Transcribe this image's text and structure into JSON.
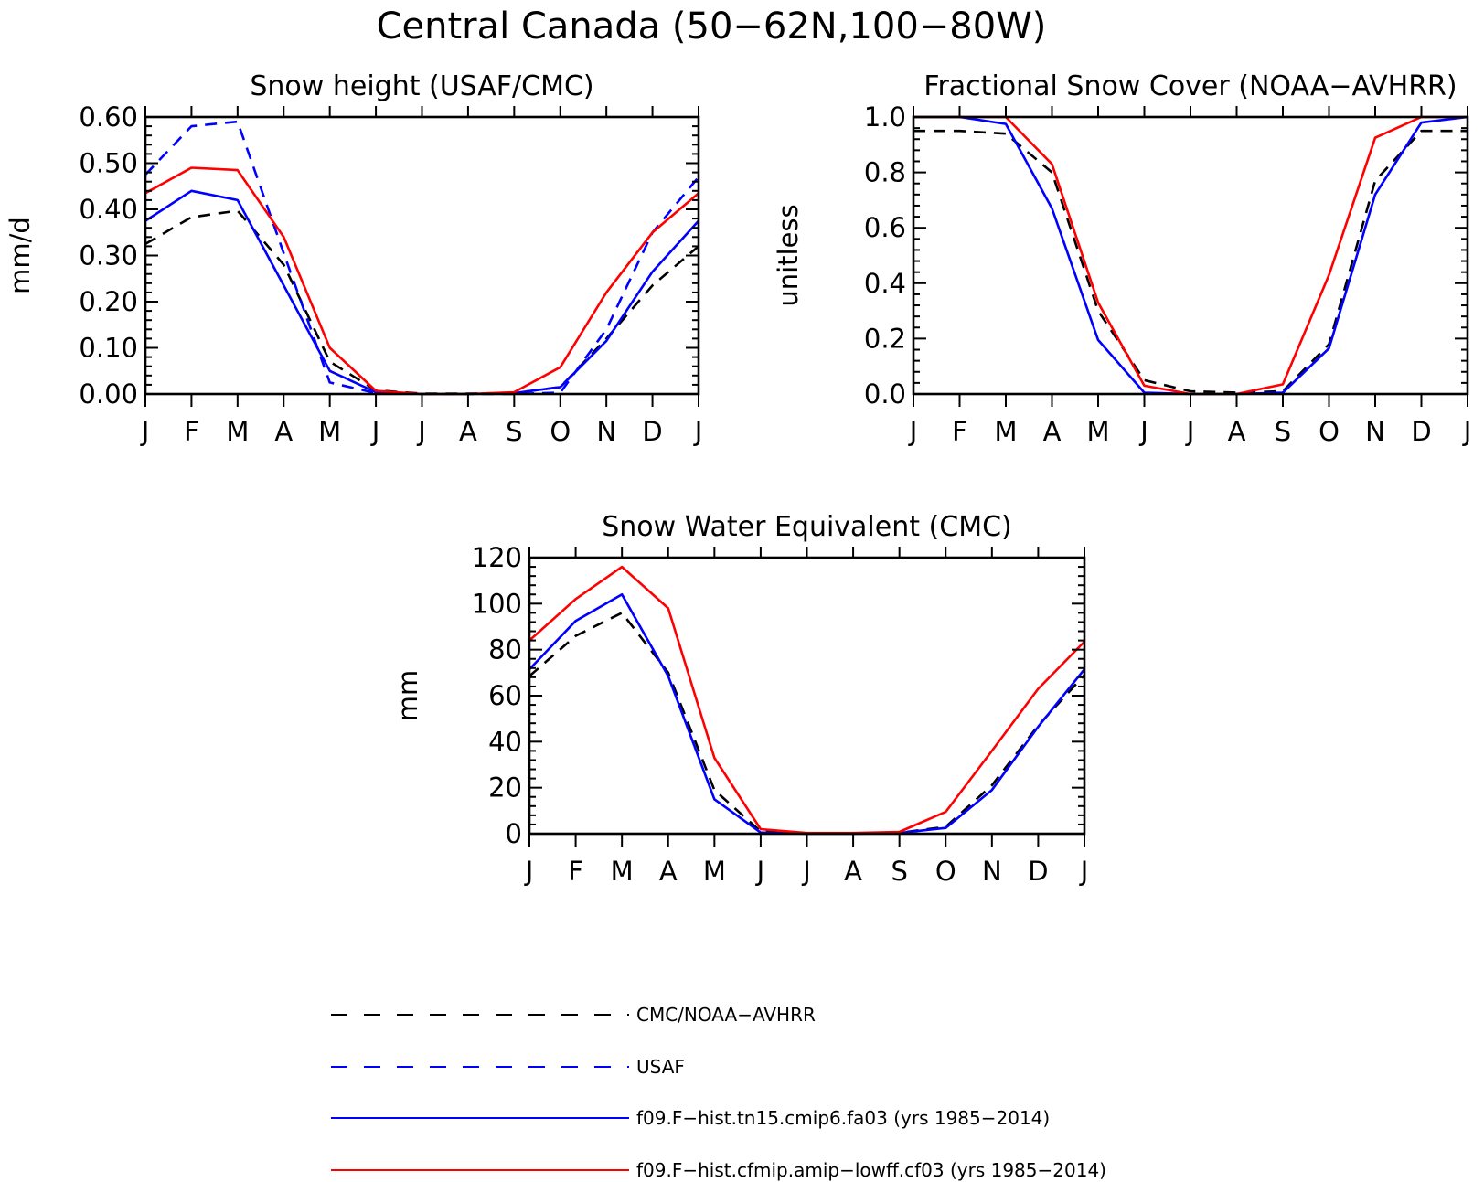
{
  "figure": {
    "title": "Central Canada (50−62N,100−80W)"
  },
  "styles": {
    "CMC/NOAA-AVHRR": {
      "color": "#000000",
      "dash": true
    },
    "USAF": {
      "color": "#0000ff",
      "dash": true
    },
    "f09.F−hist.tn15.cmip6.fa03 (yrs 1985−2014)": {
      "color": "#0000ff",
      "dash": false
    },
    "f09.F−hist.cfmip.amip−lowff.cf03 (yrs 1985−2014)": {
      "color": "#ff0000",
      "dash": false
    }
  },
  "legend": {
    "placement": "bottom-center",
    "entries": [
      "CMC/NOAA−AVHRR",
      "USAF",
      "f09.F−hist.tn15.cmip6.fa03 (yrs 1985−2014)",
      "f09.F−hist.cfmip.amip−lowff.cf03 (yrs 1985−2014)"
    ]
  },
  "chart_data": [
    {
      "type": "line",
      "title": "Snow height (USAF/CMC)",
      "xlabel": "",
      "ylabel": "mm/d",
      "categories": [
        "J",
        "F",
        "M",
        "A",
        "M",
        "J",
        "J",
        "A",
        "S",
        "O",
        "N",
        "D",
        "J"
      ],
      "ylim": [
        0,
        0.6
      ],
      "yticks": [
        0,
        0.1,
        0.2,
        0.3,
        0.4,
        0.5,
        0.6
      ],
      "ytick_labels": [
        "0.00",
        "0.10",
        "0.20",
        "0.30",
        "0.40",
        "0.50",
        "0.60"
      ],
      "grid": false,
      "series": [
        {
          "style": "CMC/NOAA-AVHRR",
          "values": [
            0.325,
            0.383,
            0.397,
            0.28,
            0.07,
            0.008,
            0.001,
            0.001,
            0.002,
            0.015,
            0.12,
            0.235,
            0.32
          ]
        },
        {
          "style": "USAF",
          "values": [
            0.475,
            0.58,
            0.59,
            0.305,
            0.025,
            0.002,
            0.0,
            0.0,
            0.0,
            0.003,
            0.14,
            0.35,
            0.47
          ]
        },
        {
          "style": "f09.F−hist.tn15.cmip6.fa03 (yrs 1985−2014)",
          "values": [
            0.375,
            0.44,
            0.42,
            0.235,
            0.05,
            0.004,
            0.0,
            0.0,
            0.002,
            0.015,
            0.115,
            0.265,
            0.375
          ]
        },
        {
          "style": "f09.F−hist.cfmip.amip−lowff.cf03 (yrs 1985−2014)",
          "values": [
            0.435,
            0.49,
            0.485,
            0.34,
            0.1,
            0.007,
            0.0,
            0.0,
            0.004,
            0.058,
            0.22,
            0.35,
            0.435
          ]
        }
      ]
    },
    {
      "type": "line",
      "title": "Fractional Snow Cover (NOAA−AVHRR)",
      "xlabel": "",
      "ylabel": "unitless",
      "categories": [
        "J",
        "F",
        "M",
        "A",
        "M",
        "J",
        "J",
        "A",
        "S",
        "O",
        "N",
        "D",
        "J"
      ],
      "ylim": [
        0,
        1.0
      ],
      "yticks": [
        0,
        0.2,
        0.4,
        0.6,
        0.8,
        1.0
      ],
      "ytick_labels": [
        "0.0",
        "0.2",
        "0.4",
        "0.6",
        "0.8",
        "1.0"
      ],
      "grid": false,
      "series": [
        {
          "style": "CMC/NOAA-AVHRR",
          "values": [
            0.95,
            0.95,
            0.94,
            0.8,
            0.3,
            0.05,
            0.01,
            0.005,
            0.01,
            0.18,
            0.77,
            0.95,
            0.95
          ]
        },
        {
          "style": "f09.F−hist.tn15.cmip6.fa03 (yrs 1985−2014)",
          "values": [
            1.0,
            1.0,
            0.975,
            0.67,
            0.195,
            0.005,
            0.0,
            0.0,
            0.005,
            0.165,
            0.72,
            0.98,
            1.0
          ]
        },
        {
          "style": "f09.F−hist.cfmip.amip−lowff.cf03 (yrs 1985−2014)",
          "values": [
            1.0,
            1.0,
            1.0,
            0.83,
            0.33,
            0.03,
            0.0,
            0.0,
            0.035,
            0.43,
            0.925,
            1.0,
            1.0
          ]
        }
      ]
    },
    {
      "type": "line",
      "title": "Snow Water Equivalent (CMC)",
      "xlabel": "",
      "ylabel": "mm",
      "categories": [
        "J",
        "F",
        "M",
        "A",
        "M",
        "J",
        "J",
        "A",
        "S",
        "O",
        "N",
        "D",
        "J"
      ],
      "ylim": [
        0,
        120
      ],
      "yticks": [
        0,
        20,
        40,
        60,
        80,
        100,
        120
      ],
      "ytick_labels": [
        "0",
        "20",
        "40",
        "60",
        "80",
        "100",
        "120"
      ],
      "grid": false,
      "series": [
        {
          "style": "CMC/NOAA-AVHRR",
          "values": [
            68.5,
            86,
            96,
            70,
            19,
            1,
            0.2,
            0.2,
            0.4,
            3,
            21,
            47,
            69
          ]
        },
        {
          "style": "f09.F−hist.tn15.cmip6.fa03 (yrs 1985−2014)",
          "values": [
            71.5,
            92.5,
            104,
            68.5,
            15,
            0.5,
            0,
            0,
            0.3,
            2.5,
            19,
            46.5,
            71.5
          ]
        },
        {
          "style": "f09.F−hist.cfmip.amip−lowff.cf03 (yrs 1985−2014)",
          "values": [
            84,
            102,
            116,
            98,
            33,
            2,
            0.3,
            0.3,
            0.8,
            9.5,
            36,
            63,
            83.5
          ]
        }
      ]
    }
  ]
}
